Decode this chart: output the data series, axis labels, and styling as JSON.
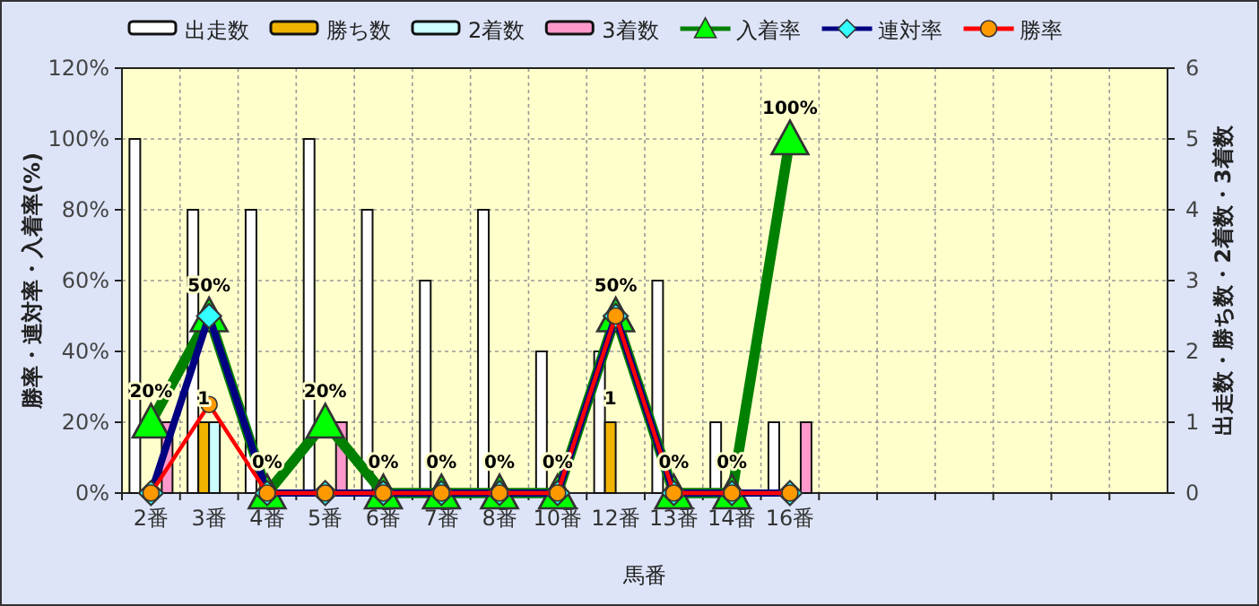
{
  "chart_data": {
    "type": "bar",
    "xlabel": "馬番",
    "ylabel": "勝率・連対率・入着率(%)",
    "y2label": "出走数・勝ち数・2着数・3着数",
    "categories": [
      "2番",
      "3番",
      "4番",
      "5番",
      "6番",
      "7番",
      "8番",
      "10番",
      "12番",
      "13番",
      "14番",
      "16番",
      null,
      null,
      null,
      null,
      null,
      null
    ],
    "series": [
      {
        "name": "出走数",
        "color": "#ffffff",
        "axis": "y2",
        "values": [
          5,
          4,
          4,
          5,
          4,
          3,
          4,
          2,
          2,
          3,
          1,
          1,
          null,
          null,
          null,
          null,
          null,
          null
        ]
      },
      {
        "name": "勝ち数",
        "color": "#f0b400",
        "axis": "y2",
        "values": [
          0,
          1,
          0,
          0,
          0,
          0,
          0,
          0,
          1,
          0,
          0,
          0,
          null,
          null,
          null,
          null,
          null,
          null
        ],
        "value_labels": [
          null,
          "1",
          null,
          null,
          null,
          null,
          null,
          null,
          "1",
          null,
          null,
          null,
          null,
          null,
          null,
          null,
          null,
          null
        ]
      },
      {
        "name": "2着数",
        "color": "#ccffff",
        "axis": "y2",
        "values": [
          0,
          1,
          0,
          0,
          0,
          0,
          0,
          0,
          0,
          0,
          0,
          0,
          null,
          null,
          null,
          null,
          null,
          null
        ]
      },
      {
        "name": "3着数",
        "color": "#ff99cc",
        "axis": "y2",
        "values": [
          1,
          0,
          0,
          1,
          0,
          0,
          0,
          0,
          0,
          0,
          0,
          1,
          null,
          null,
          null,
          null,
          null,
          null
        ]
      },
      {
        "name": "入着率",
        "color": "#008000",
        "type": "line",
        "marker": "triangle",
        "values": [
          20,
          50,
          0,
          20,
          0,
          0,
          0,
          0,
          50,
          0,
          0,
          100,
          null,
          null,
          null,
          null,
          null,
          null
        ],
        "value_labels": [
          "20%",
          "50%",
          "0%",
          "20%",
          "0%",
          "0%",
          "0%",
          "0%",
          "50%",
          "0%",
          "0%",
          "100%",
          null,
          null,
          null,
          null,
          null,
          null
        ]
      },
      {
        "name": "連対率",
        "color": "#000080",
        "type": "line",
        "marker": "diamond",
        "values": [
          0,
          50,
          0,
          0,
          0,
          0,
          0,
          0,
          50,
          0,
          0,
          0,
          null,
          null,
          null,
          null,
          null,
          null
        ]
      },
      {
        "name": "勝率",
        "color": "#ff0000",
        "type": "line",
        "marker": "circle",
        "values": [
          0,
          25,
          0,
          0,
          0,
          0,
          0,
          0,
          50,
          0,
          0,
          0,
          null,
          null,
          null,
          null,
          null,
          null
        ]
      }
    ],
    "ylim": [
      0,
      120
    ],
    "yticks": [
      {
        "value": 0,
        "label": "0%"
      },
      {
        "value": 20,
        "label": "20%"
      },
      {
        "value": 40,
        "label": "40%"
      },
      {
        "value": 60,
        "label": "60%"
      },
      {
        "value": 80,
        "label": "80%"
      },
      {
        "value": 100,
        "label": "100%"
      },
      {
        "value": 120,
        "label": "120%"
      }
    ],
    "y2lim": [
      0,
      6
    ],
    "y2ticks": [
      0,
      1,
      2,
      3,
      4,
      5,
      6
    ],
    "grid": true,
    "legend": "top"
  }
}
